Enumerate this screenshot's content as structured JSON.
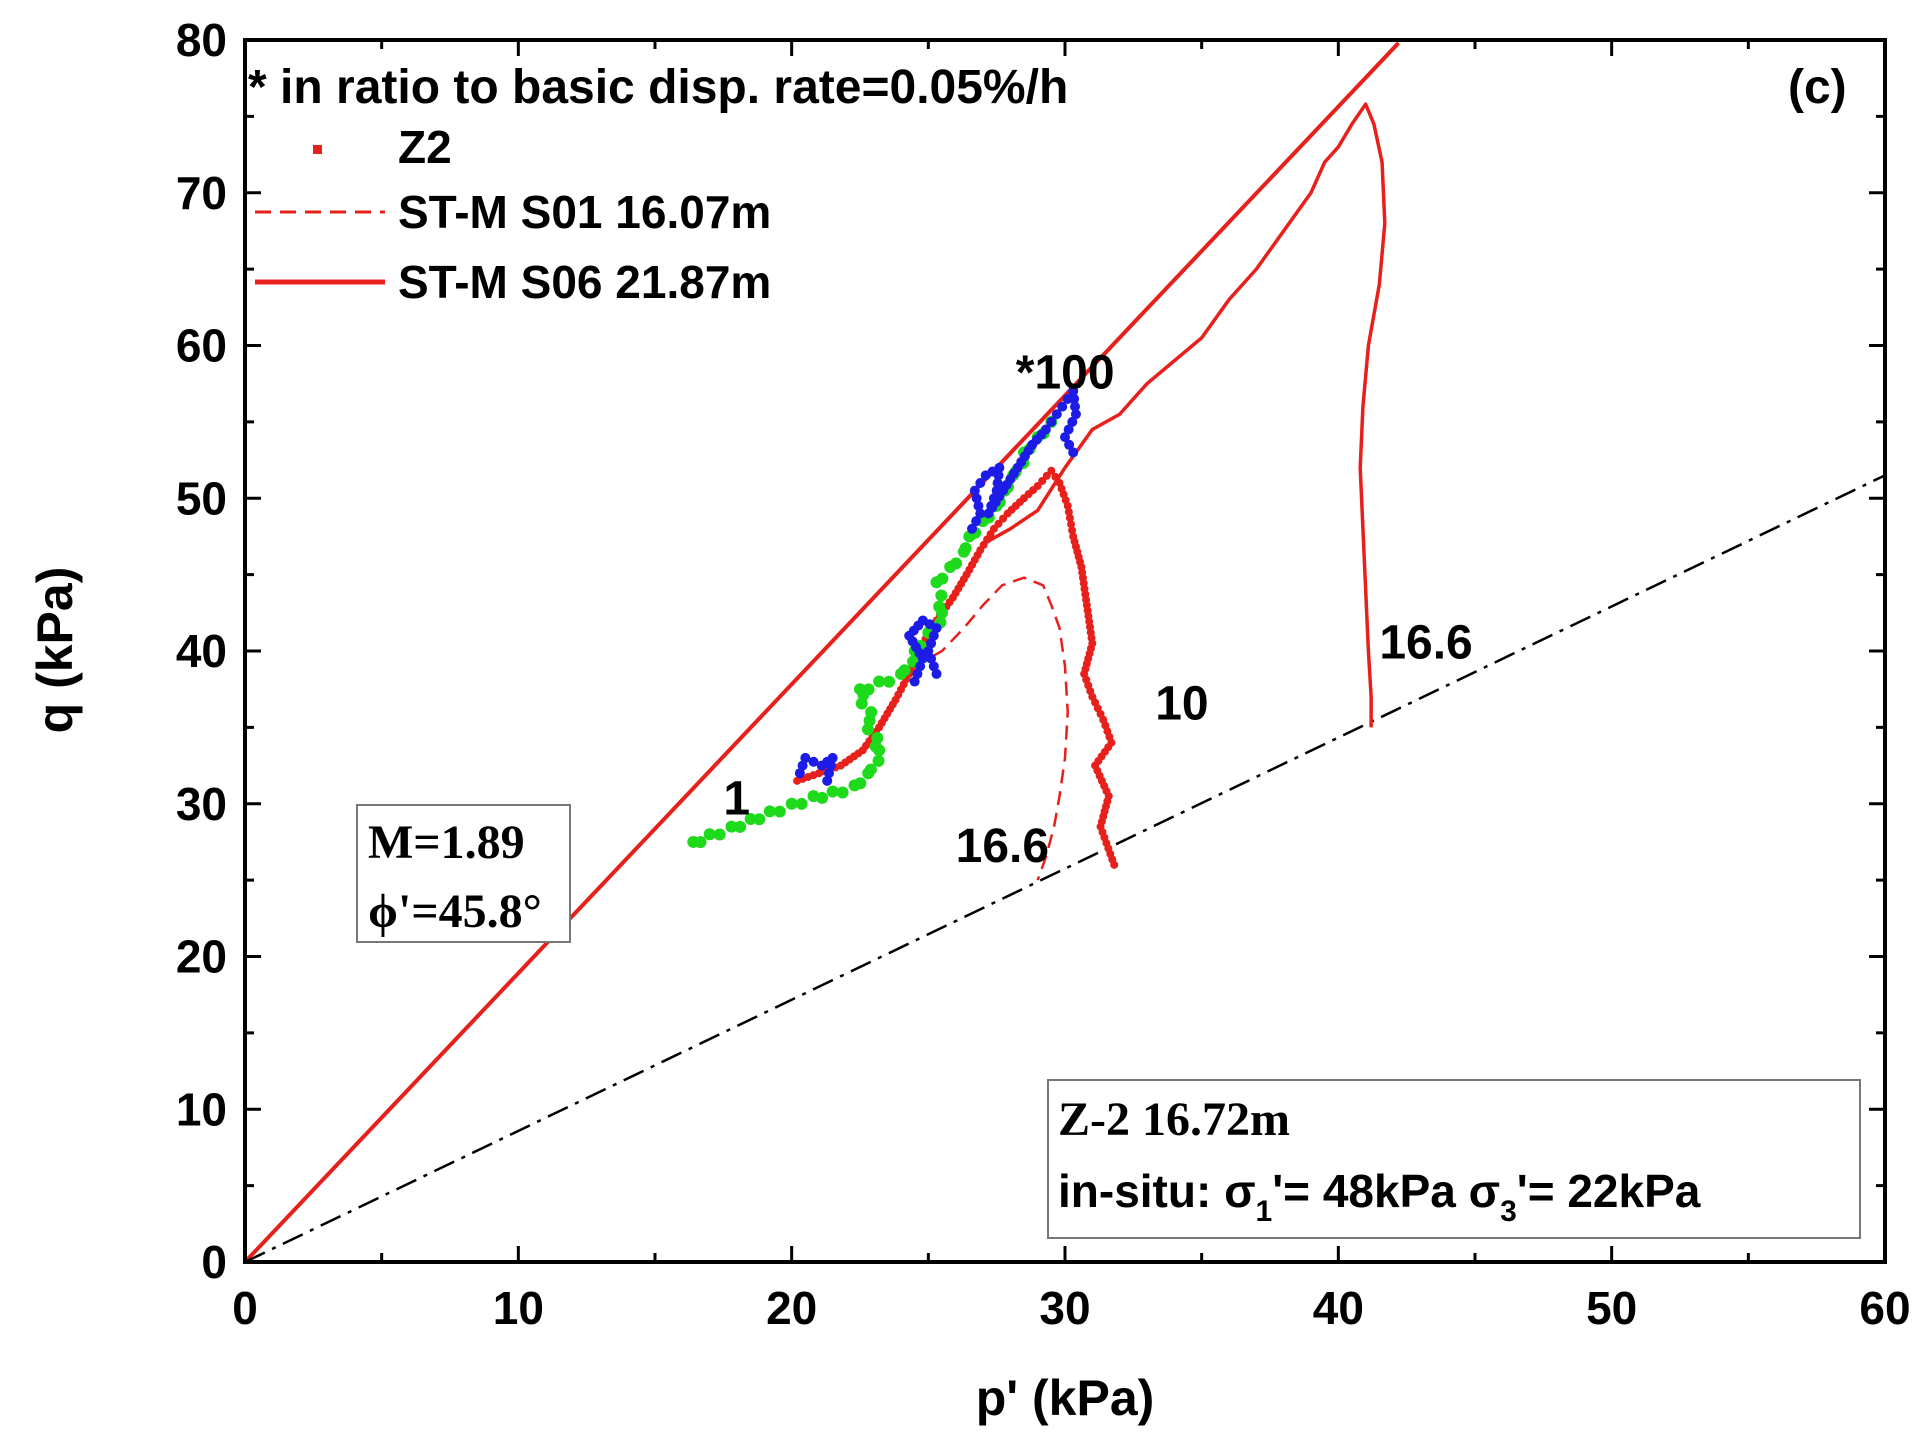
{
  "chart_data": {
    "type": "line",
    "panel_label": "(c)",
    "note": "* in ratio to basic disp. rate=0.05%/h",
    "xlabel": "p' (kPa)",
    "ylabel": "q (kPa)",
    "xlim": [
      0,
      60
    ],
    "ylim": [
      0,
      80
    ],
    "x_ticks": [
      "0",
      "10",
      "20",
      "30",
      "40",
      "50",
      "60"
    ],
    "y_ticks": [
      "0",
      "10",
      "20",
      "30",
      "40",
      "50",
      "60",
      "70",
      "80"
    ],
    "legend": {
      "placement": "top-left",
      "entries": [
        {
          "label": "Z2",
          "style": "dots",
          "color": "#e8201c"
        },
        {
          "label": "ST-M S01 16.07m",
          "style": "dashed",
          "color": "#e8201c"
        },
        {
          "label": "ST-M S06 21.87m",
          "style": "solid",
          "color": "#e8201c"
        }
      ]
    },
    "series": [
      {
        "name": "Z2",
        "style": "dots",
        "color": "#e8201c",
        "points": [
          [
            20.2,
            31.5
          ],
          [
            21.0,
            32.0
          ],
          [
            21.8,
            32.5
          ],
          [
            22.6,
            33.5
          ],
          [
            23.2,
            35.0
          ],
          [
            23.8,
            36.8
          ],
          [
            24.3,
            38.5
          ],
          [
            24.8,
            40.5
          ],
          [
            25.3,
            42.0
          ],
          [
            25.9,
            43.5
          ],
          [
            26.4,
            45.0
          ],
          [
            26.9,
            46.6
          ],
          [
            27.4,
            48.0
          ],
          [
            27.9,
            49.0
          ],
          [
            28.5,
            50.0
          ],
          [
            29.0,
            50.8
          ],
          [
            29.5,
            51.8
          ],
          [
            29.8,
            51.0
          ],
          [
            30.1,
            49.5
          ],
          [
            30.3,
            47.5
          ],
          [
            30.6,
            45.5
          ],
          [
            30.8,
            43.0
          ],
          [
            31.0,
            40.5
          ],
          [
            30.7,
            38.5
          ],
          [
            31.0,
            37.0
          ],
          [
            31.4,
            35.5
          ],
          [
            31.7,
            34.0
          ],
          [
            31.1,
            32.5
          ],
          [
            31.6,
            30.5
          ],
          [
            31.3,
            28.5
          ],
          [
            31.8,
            26.0
          ]
        ]
      },
      {
        "name": "ST-M S01 16.07m",
        "style": "dashed",
        "color": "#e8201c",
        "points": [
          [
            24.5,
            39.0
          ],
          [
            25.5,
            40.0
          ],
          [
            26.3,
            41.5
          ],
          [
            27.0,
            43.0
          ],
          [
            27.7,
            44.3
          ],
          [
            28.5,
            44.8
          ],
          [
            29.2,
            44.3
          ],
          [
            29.5,
            43.0
          ],
          [
            29.8,
            41.5
          ],
          [
            30.0,
            39.0
          ],
          [
            30.1,
            36.0
          ],
          [
            30.0,
            33.0
          ],
          [
            29.8,
            30.5
          ],
          [
            29.6,
            28.5
          ],
          [
            29.3,
            26.5
          ],
          [
            29.0,
            25.0
          ]
        ]
      },
      {
        "name": "ST-M S06 21.87m",
        "style": "solid",
        "color": "#e8201c",
        "points": [
          [
            27.0,
            47.0
          ],
          [
            28.0,
            48.0
          ],
          [
            29.0,
            49.2
          ],
          [
            30.0,
            52.0
          ],
          [
            31.0,
            54.5
          ],
          [
            32.0,
            55.5
          ],
          [
            33.0,
            57.5
          ],
          [
            34.0,
            59.0
          ],
          [
            35.0,
            60.5
          ],
          [
            36.0,
            63.0
          ],
          [
            37.0,
            65.0
          ],
          [
            38.0,
            67.5
          ],
          [
            39.0,
            70.0
          ],
          [
            39.5,
            72.0
          ],
          [
            40.0,
            73.0
          ],
          [
            40.5,
            74.5
          ],
          [
            41.0,
            75.8
          ],
          [
            41.3,
            74.5
          ],
          [
            41.6,
            72.0
          ],
          [
            41.7,
            68.0
          ],
          [
            41.5,
            64.0
          ],
          [
            41.1,
            60.0
          ],
          [
            40.9,
            56.0
          ],
          [
            40.8,
            52.0
          ],
          [
            40.9,
            48.0
          ],
          [
            41.0,
            44.0
          ],
          [
            41.1,
            40.0
          ],
          [
            41.2,
            37.0
          ],
          [
            41.2,
            35.0
          ]
        ]
      },
      {
        "name": "",
        "style": "green-dots",
        "color": "#1ddb1a",
        "points": [
          [
            16.4,
            27.5
          ],
          [
            17.0,
            28.0
          ],
          [
            17.8,
            28.5
          ],
          [
            18.5,
            29.0
          ],
          [
            19.2,
            29.5
          ],
          [
            20.0,
            30.0
          ],
          [
            20.8,
            30.5
          ],
          [
            21.5,
            30.8
          ],
          [
            22.3,
            31.2
          ],
          [
            22.8,
            32.0
          ],
          [
            23.2,
            33.5
          ],
          [
            22.5,
            37.5
          ],
          [
            23.2,
            38.0
          ],
          [
            24.0,
            38.5
          ],
          [
            24.5,
            40.0
          ],
          [
            25.0,
            41.2
          ],
          [
            25.5,
            42.5
          ],
          [
            25.3,
            44.5
          ],
          [
            25.8,
            45.5
          ],
          [
            26.3,
            46.5
          ],
          [
            26.5,
            47.5
          ],
          [
            27.0,
            48.5
          ],
          [
            27.5,
            49.5
          ],
          [
            27.8,
            50.5
          ],
          [
            28.1,
            51.5
          ],
          [
            28.5,
            53.0
          ],
          [
            29.0,
            54.0
          ],
          [
            29.5,
            55.0
          ]
        ]
      },
      {
        "name": "",
        "style": "blue-dots",
        "color": "#1c1ce6",
        "points": [
          [
            20.3,
            32.0
          ],
          [
            20.5,
            33.0
          ],
          [
            21.1,
            32.5
          ],
          [
            21.5,
            33.0
          ],
          [
            21.3,
            31.5
          ],
          [
            24.5,
            38.0
          ],
          [
            24.8,
            39.5
          ],
          [
            24.3,
            41.0
          ],
          [
            24.8,
            42.0
          ],
          [
            25.3,
            41.5
          ],
          [
            25.0,
            40.0
          ],
          [
            25.3,
            38.5
          ],
          [
            26.6,
            48.0
          ],
          [
            26.9,
            49.0
          ],
          [
            26.7,
            50.5
          ],
          [
            27.1,
            51.5
          ],
          [
            27.6,
            52.0
          ],
          [
            27.5,
            50.5
          ],
          [
            27.2,
            49.0
          ],
          [
            28.8,
            53.5
          ],
          [
            29.3,
            54.5
          ],
          [
            29.7,
            55.5
          ],
          [
            30.1,
            56.5
          ],
          [
            30.3,
            57.0
          ],
          [
            30.4,
            55.5
          ],
          [
            30.0,
            54.0
          ],
          [
            30.3,
            53.0
          ]
        ]
      }
    ],
    "lines": [
      {
        "name": "critical-state-line",
        "style": "solid",
        "color": "#e8201c",
        "points": [
          [
            0,
            0
          ],
          [
            42.2,
            79.8
          ]
        ]
      },
      {
        "name": "in-situ-stress-line",
        "style": "dash-dot",
        "color": "#000000",
        "points": [
          [
            0,
            0
          ],
          [
            60,
            51.5
          ]
        ]
      }
    ],
    "annotations": [
      {
        "text": "*100",
        "x": 28.2,
        "y": 57.2
      },
      {
        "text": "1",
        "x": 17.5,
        "y": 29.3
      },
      {
        "text": "10",
        "x": 33.3,
        "y": 35.5
      },
      {
        "text": "16.6",
        "x": 26.0,
        "y": 26.2
      },
      {
        "text": "16.6",
        "x": 41.5,
        "y": 39.5
      }
    ],
    "param_box": {
      "line1": "M=1.89",
      "line2": "ϕ'=45.8°"
    },
    "info_box": {
      "line1": "Z-2 16.72m",
      "line2_prefix": "in-situ:  σ",
      "sub1": "1",
      "line2_mid": "'= 48kPa σ",
      "sub3": "3",
      "line2_end": "'= 22kPa"
    }
  }
}
